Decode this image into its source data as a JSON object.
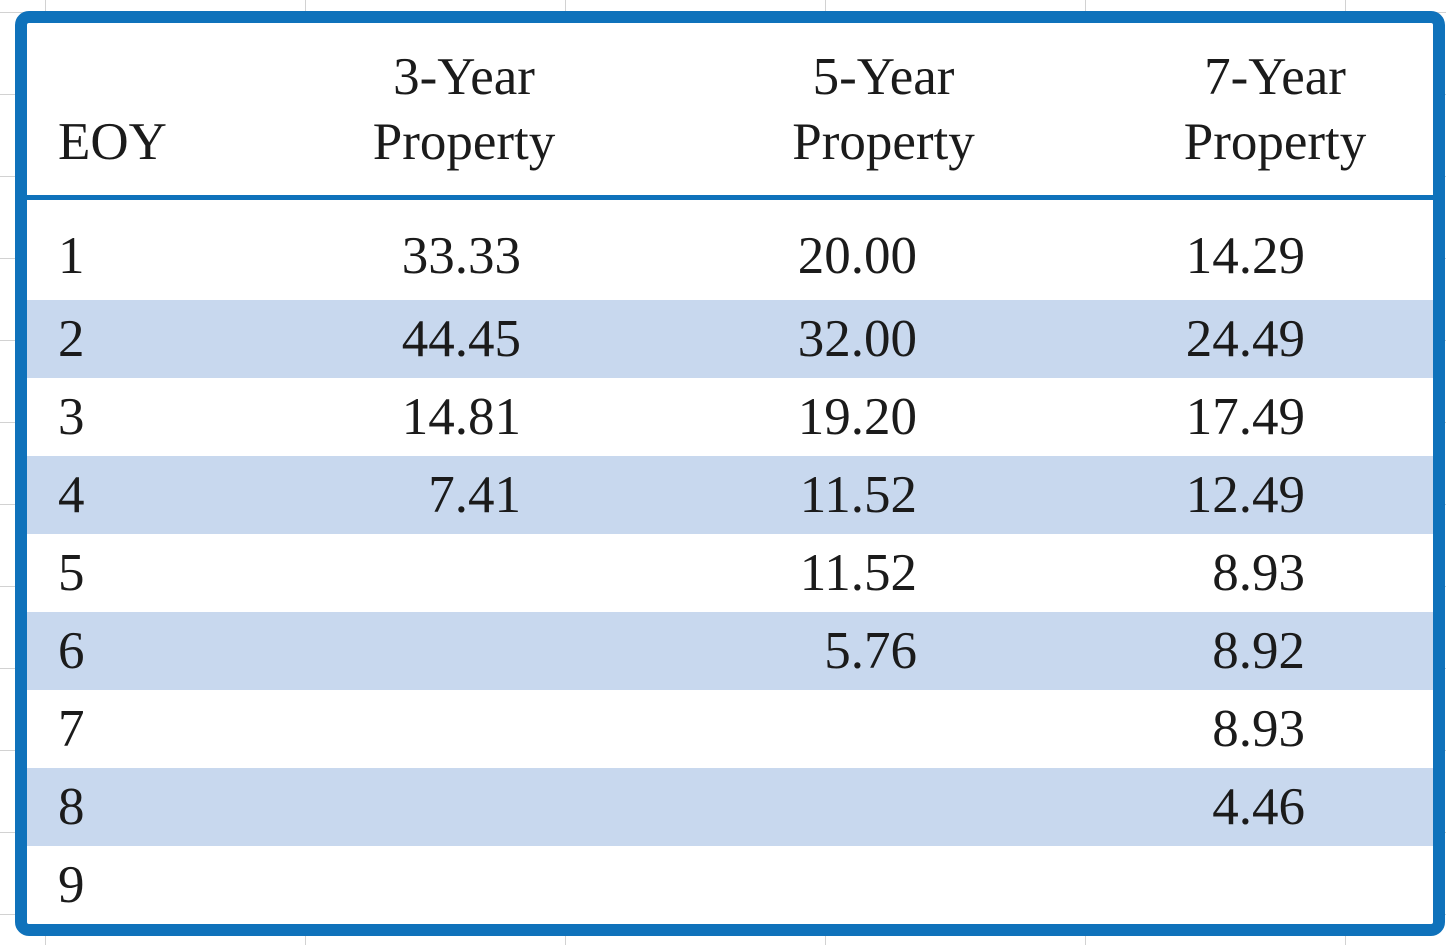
{
  "colors": {
    "accent": "#0f72bb",
    "stripe": "#c8d8ee",
    "grid": "#d2d2d2",
    "text": "#1b1b1b",
    "bg": "#ffffff"
  },
  "table": {
    "columns": [
      {
        "label": "EOY"
      },
      {
        "line1": "3-Year",
        "line2": "Property"
      },
      {
        "line1": "5-Year",
        "line2": "Property"
      },
      {
        "line1": "7-Year",
        "line2": "Property"
      }
    ],
    "rows": [
      {
        "eoy": "1",
        "y3": "33.33",
        "y5": "20.00",
        "y7": "14.29"
      },
      {
        "eoy": "2",
        "y3": "44.45",
        "y5": "32.00",
        "y7": "24.49"
      },
      {
        "eoy": "3",
        "y3": "14.81",
        "y5": "19.20",
        "y7": "17.49"
      },
      {
        "eoy": "4",
        "y3": "7.41",
        "y5": "11.52",
        "y7": "12.49"
      },
      {
        "eoy": "5",
        "y3": "",
        "y5": "11.52",
        "y7": "8.93"
      },
      {
        "eoy": "6",
        "y3": "",
        "y5": "5.76",
        "y7": "8.92"
      },
      {
        "eoy": "7",
        "y3": "",
        "y5": "",
        "y7": "8.93"
      },
      {
        "eoy": "8",
        "y3": "",
        "y5": "",
        "y7": "4.46"
      },
      {
        "eoy": "9",
        "y3": "",
        "y5": "",
        "y7": ""
      }
    ]
  },
  "chart_data": {
    "type": "table",
    "title": "",
    "columns": [
      "EOY",
      "3-Year Property",
      "5-Year Property",
      "7-Year Property"
    ],
    "rows": [
      [
        1,
        33.33,
        20.0,
        14.29
      ],
      [
        2,
        44.45,
        32.0,
        24.49
      ],
      [
        3,
        14.81,
        19.2,
        17.49
      ],
      [
        4,
        7.41,
        11.52,
        12.49
      ],
      [
        5,
        null,
        11.52,
        8.93
      ],
      [
        6,
        null,
        5.76,
        8.92
      ],
      [
        7,
        null,
        null,
        8.93
      ],
      [
        8,
        null,
        null,
        4.46
      ],
      [
        9,
        null,
        null,
        null
      ]
    ],
    "layout_hints": {
      "striped_rows": true,
      "stripe_color": "#c8d8ee",
      "border_color": "#0f72bb",
      "values_align": "right-decimal",
      "background": "spreadsheet-grid"
    }
  }
}
